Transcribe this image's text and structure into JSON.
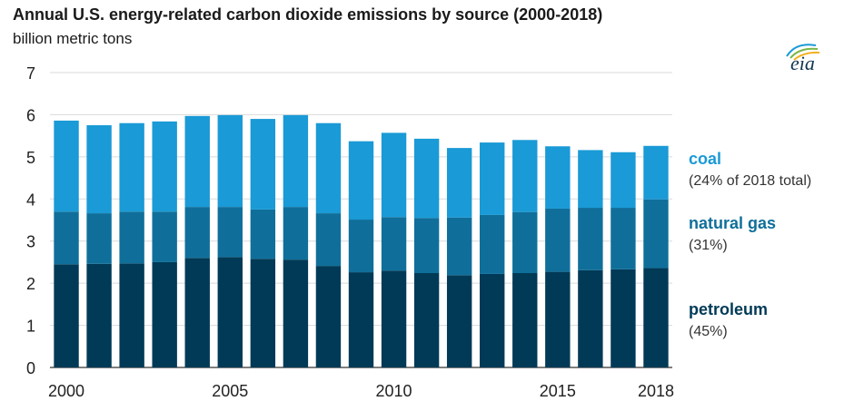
{
  "title": "Annual U.S. energy-related carbon dioxide emissions by source (2000-2018)",
  "subtitle": "billion metric tons",
  "logo": {
    "text": "eia",
    "icon": "eia-logo"
  },
  "legend": [
    {
      "key": "coal",
      "label": "coal",
      "note": "(24% of 2018 total)",
      "color": "#1a9ad6"
    },
    {
      "key": "natural_gas",
      "label": "natural gas",
      "note": "(31%)",
      "color": "#0f6f9a"
    },
    {
      "key": "petroleum",
      "label": "petroleum",
      "note": "(45%)",
      "color": "#003a57"
    }
  ],
  "chart_data": {
    "type": "bar",
    "stacked": true,
    "categories": [
      "2000",
      "2001",
      "2002",
      "2003",
      "2004",
      "2005",
      "2006",
      "2007",
      "2008",
      "2009",
      "2010",
      "2011",
      "2012",
      "2013",
      "2014",
      "2015",
      "2016",
      "2017",
      "2018"
    ],
    "x_tick_labels": [
      "2000",
      "2005",
      "2010",
      "2015",
      "2018"
    ],
    "y_ticks": [
      0,
      1,
      2,
      3,
      4,
      5,
      6,
      7
    ],
    "ylim": [
      0,
      7
    ],
    "grid": true,
    "series": [
      {
        "name": "petroleum",
        "values": [
          2.45,
          2.46,
          2.47,
          2.5,
          2.6,
          2.62,
          2.58,
          2.56,
          2.41,
          2.26,
          2.3,
          2.24,
          2.19,
          2.22,
          2.24,
          2.27,
          2.31,
          2.33,
          2.36
        ]
      },
      {
        "name": "natural gas",
        "values": [
          1.25,
          1.2,
          1.23,
          1.2,
          1.21,
          1.19,
          1.17,
          1.25,
          1.25,
          1.25,
          1.27,
          1.31,
          1.37,
          1.4,
          1.45,
          1.5,
          1.48,
          1.46,
          1.63
        ]
      },
      {
        "name": "coal",
        "values": [
          2.16,
          2.09,
          2.1,
          2.14,
          2.16,
          2.18,
          2.15,
          2.18,
          2.14,
          1.86,
          2.0,
          1.88,
          1.65,
          1.72,
          1.71,
          1.48,
          1.37,
          1.32,
          1.27
        ]
      }
    ]
  }
}
